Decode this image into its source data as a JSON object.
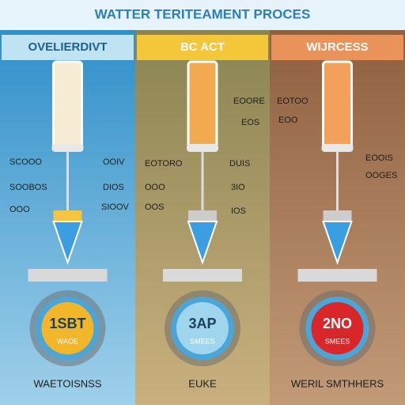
{
  "title": "WATTER TERITEAMENT PROCES",
  "panels": [
    {
      "header": "OVELIERDIVT",
      "labels": [
        "SCOOO",
        "OOIV",
        "SOOBOS",
        "DIOS",
        "OOO",
        "SIOOV"
      ],
      "badge": {
        "value": "1SBT",
        "caption": "WAOE"
      },
      "footer": "WAETOISNSS"
    },
    {
      "header": "BC ACT",
      "labels": [
        "EOORE",
        "EOS",
        "EOTORO",
        "DUIS",
        "OOO",
        "3IO",
        "OOS",
        "IOS"
      ],
      "badge": {
        "value": "3AP",
        "caption": "SMEES"
      },
      "footer": "EUKE"
    },
    {
      "header": "WIJRCESS",
      "labels": [
        "EOTOO",
        "EOO",
        "EOOIS",
        "OOGES"
      ],
      "badge": {
        "value": "2NO",
        "caption": "SMEES"
      },
      "footer": "WERIL SMTHHERS"
    }
  ]
}
